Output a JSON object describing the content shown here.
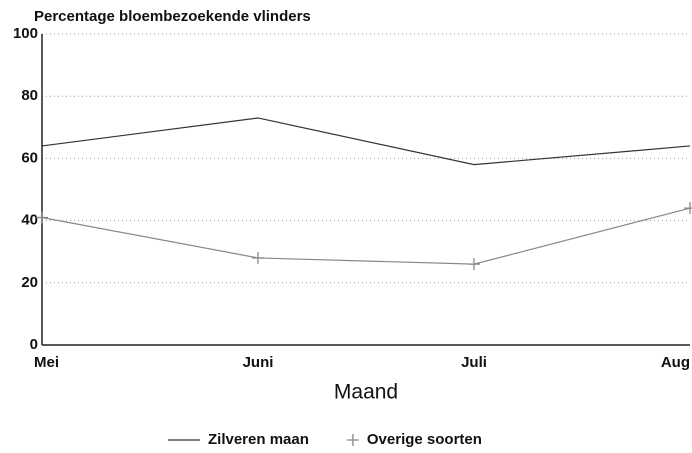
{
  "chart_data": {
    "type": "line",
    "title": "Percentage bloembezoekende vlinders",
    "xlabel": "Maand",
    "categories": [
      "Mei",
      "Juni",
      "Juli",
      "Aug"
    ],
    "series": [
      {
        "name": "Zilveren maan",
        "color": "#333333",
        "marker": "none",
        "values": [
          64,
          73,
          58,
          64
        ]
      },
      {
        "name": "Overige soorten",
        "color": "#888888",
        "marker": "plus",
        "values": [
          41,
          28,
          26,
          44
        ]
      }
    ],
    "ylim": [
      0,
      100
    ],
    "yticks": [
      0,
      20,
      40,
      60,
      80,
      100
    ],
    "grid": true,
    "legend": "bottom"
  }
}
